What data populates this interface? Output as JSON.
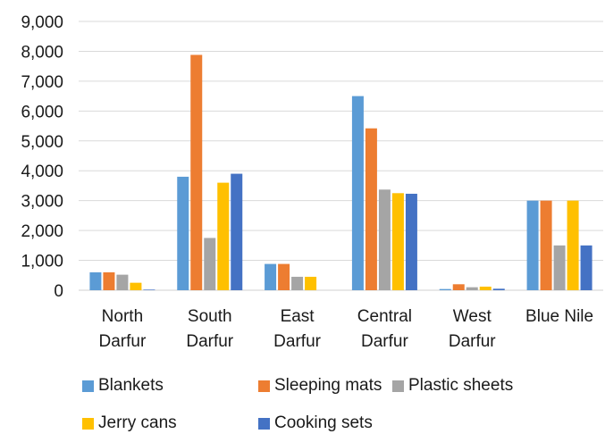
{
  "chart_data": {
    "type": "bar",
    "categories": [
      [
        "North",
        "Darfur"
      ],
      [
        "South",
        "Darfur"
      ],
      [
        "East",
        "Darfur"
      ],
      [
        "Central",
        "Darfur"
      ],
      [
        "West",
        "Darfur"
      ],
      [
        "Blue Nile"
      ]
    ],
    "series": [
      {
        "name": "Blankets",
        "color": "#5b9bd5",
        "values": [
          600,
          3800,
          880,
          6500,
          40,
          3000
        ]
      },
      {
        "name": "Sleeping mats",
        "color": "#ed7d31",
        "values": [
          600,
          7880,
          880,
          5420,
          200,
          3000
        ]
      },
      {
        "name": "Plastic sheets",
        "color": "#a5a5a5",
        "values": [
          520,
          1750,
          450,
          3370,
          100,
          1500
        ]
      },
      {
        "name": "Jerry cans",
        "color": "#ffc000",
        "values": [
          250,
          3600,
          450,
          3250,
          120,
          3000
        ]
      },
      {
        "name": "Cooking sets",
        "color": "#4472c4",
        "values": [
          20,
          3900,
          0,
          3230,
          50,
          1500
        ]
      }
    ],
    "yticks": [
      "0",
      "1,000",
      "2,000",
      "3,000",
      "4,000",
      "5,000",
      "6,000",
      "7,000",
      "8,000",
      "9,000"
    ],
    "ylim": [
      0,
      9000
    ],
    "grid": true,
    "legend_position": "bottom"
  }
}
